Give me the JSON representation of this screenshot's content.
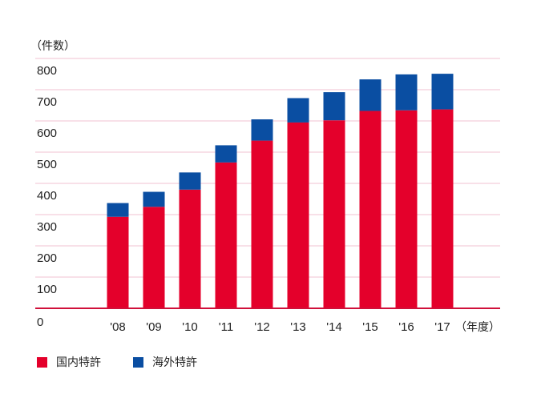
{
  "chart_data": {
    "type": "bar",
    "stacked": true,
    "y_unit_label": "（件数）",
    "x_unit_label": "（年度）",
    "categories": [
      "'08",
      "'09",
      "'10",
      "'11",
      "'12",
      "'13",
      "'14",
      "'15",
      "'16",
      "'17"
    ],
    "series": [
      {
        "name": "国内特許",
        "color": "#e4002b",
        "values": [
          293,
          325,
          380,
          467,
          537,
          595,
          602,
          632,
          634,
          637
        ]
      },
      {
        "name": "海外特許",
        "color": "#0a4ea2",
        "values": [
          44,
          48,
          55,
          55,
          68,
          78,
          90,
          101,
          115,
          114
        ]
      }
    ],
    "ylim": [
      0,
      800
    ],
    "yticks": [
      0,
      100,
      200,
      300,
      400,
      500,
      600,
      700,
      800
    ],
    "grid": true,
    "grid_color": "#f2c2d0",
    "axis_color": "#d0103a",
    "legend_position": "bottom-left"
  }
}
